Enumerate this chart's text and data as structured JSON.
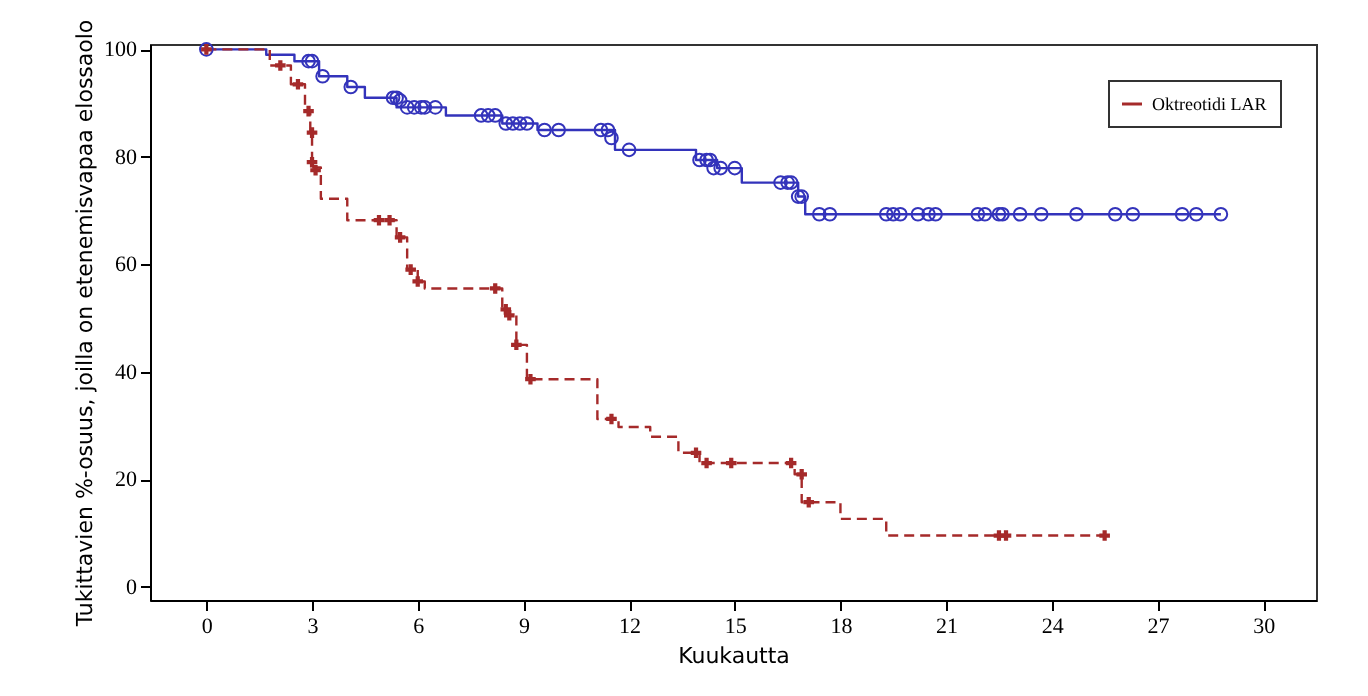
{
  "chart_data": {
    "type": "step",
    "xlabel": "Kuukautta",
    "ylabel": "Tukittavien %-osuus, joilla on etenemisvapaa elossaolo",
    "xlim": [
      -1.6,
      31.5
    ],
    "xticks": [
      0,
      3,
      6,
      9,
      12,
      15,
      18,
      21,
      24,
      27,
      30
    ],
    "ylim": [
      -2.5,
      101
    ],
    "yticks": [
      0,
      20,
      40,
      60,
      80,
      100
    ],
    "grid": false,
    "legend": "top right",
    "series": [
      {
        "color": "#3333bb",
        "line_style": "solid",
        "x": [
          0,
          1.7,
          2.5,
          3.2,
          4.0,
          4.5,
          5.4,
          6.8,
          8.4,
          9.4,
          11.6,
          13.9,
          14.5,
          15.2,
          16.8,
          17.0,
          28.8
        ],
        "values": [
          100,
          99,
          97.8,
          95,
          93,
          91,
          89.2,
          87.7,
          86.2,
          85,
          81.3,
          79.4,
          77.9,
          75.2,
          72.6,
          69.3,
          69.3
        ]
      },
      {
        "name": "Oktreotidi LAR",
        "color": "#a52a2a",
        "line_style": "dashed",
        "x": [
          0,
          1.8,
          2.4,
          2.8,
          2.95,
          3.0,
          3.25,
          4.0,
          5.4,
          5.7,
          6.0,
          6.2,
          8.4,
          8.6,
          8.8,
          9.1,
          11.1,
          11.7,
          12.6,
          13.4,
          14.0,
          16.7,
          16.9,
          18.0,
          19.3,
          25.5
        ],
        "values": [
          100,
          97,
          93.5,
          88.5,
          84.5,
          78,
          72.2,
          68.2,
          65,
          59,
          56.8,
          55.5,
          51.6,
          50.5,
          45,
          38.6,
          31.2,
          29.7,
          27.9,
          24.9,
          23,
          20.9,
          15.7,
          12.6,
          9.5,
          9.5
        ]
      },
      {
        "type": "scatter",
        "color": "#3333bb",
        "marker": "circle",
        "x": [
          0,
          2.9,
          3.0,
          3.3,
          4.1,
          5.3,
          5.4,
          5.5,
          5.7,
          5.9,
          6.1,
          6.2,
          6.5,
          7.8,
          8.0,
          8.2,
          8.5,
          8.7,
          8.9,
          9.1,
          9.6,
          10.0,
          11.2,
          11.4,
          11.5,
          12.0,
          14.0,
          14.2,
          14.3,
          14.4,
          14.6,
          15.0,
          16.3,
          16.5,
          16.6,
          16.8,
          16.9,
          17.4,
          17.7,
          19.3,
          19.5,
          19.7,
          20.2,
          20.5,
          20.7,
          21.9,
          22.1,
          22.5,
          22.6,
          23.1,
          23.7,
          24.7,
          25.8,
          26.3,
          27.7,
          28.1,
          28.8
        ],
        "values": [
          100,
          97.8,
          97.8,
          95,
          93,
          91,
          91,
          90.5,
          89.2,
          89.2,
          89.2,
          89.2,
          89.2,
          87.7,
          87.7,
          87.7,
          86.2,
          86.2,
          86.2,
          86.2,
          85,
          85,
          85,
          85,
          83.5,
          81.3,
          79.4,
          79.4,
          79.4,
          77.9,
          77.9,
          77.9,
          75.2,
          75.2,
          75.2,
          72.6,
          72.6,
          69.3,
          69.3,
          69.3,
          69.3,
          69.3,
          69.3,
          69.3,
          69.3,
          69.3,
          69.3,
          69.3,
          69.3,
          69.3,
          69.3,
          69.3,
          69.3,
          69.3,
          69.3,
          69.3,
          69.3
        ]
      },
      {
        "type": "scatter",
        "color": "#a52a2a",
        "marker": "cross",
        "x": [
          0,
          2.1,
          2.6,
          2.9,
          3.0,
          3.0,
          3.1,
          4.9,
          5.2,
          5.5,
          5.8,
          6.0,
          8.2,
          8.5,
          8.6,
          8.8,
          9.2,
          11.5,
          13.9,
          14.2,
          14.9,
          16.6,
          16.9,
          17.1,
          22.5,
          22.7,
          25.5
        ],
        "values": [
          100,
          97,
          93.5,
          88.5,
          84.5,
          79,
          77.5,
          68.2,
          68.2,
          65,
          59,
          56.8,
          55.5,
          51.6,
          50.5,
          45,
          38.6,
          31.2,
          24.9,
          23,
          23,
          23,
          20.9,
          15.7,
          9.5,
          9.5,
          9.5
        ]
      }
    ]
  }
}
